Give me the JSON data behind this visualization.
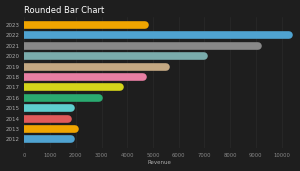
{
  "title": "Rounded Bar Chart",
  "xlabel": "Revenue",
  "bg_color": "#1e1e1e",
  "years": [
    "2012",
    "2013",
    "2014",
    "2015",
    "2016",
    "2017",
    "2018",
    "2019",
    "2020",
    "2021",
    "2022",
    "2023"
  ],
  "values": [
    1800,
    1950,
    1700,
    1800,
    2900,
    3700,
    4600,
    5500,
    7000,
    9100,
    10300,
    4700
  ],
  "colors": [
    "#4fa3d1",
    "#f0a500",
    "#e05a5a",
    "#5ecece",
    "#2aaa70",
    "#d4d41a",
    "#e87fa3",
    "#c4a882",
    "#7aacac",
    "#888888",
    "#4fa3d1",
    "#f0a500"
  ],
  "xlim": [
    0,
    10500
  ],
  "xticks": [
    0,
    1000,
    2000,
    3000,
    4000,
    5000,
    6000,
    7000,
    8000,
    9000,
    10000
  ],
  "tick_color": "#888888",
  "text_color": "#aaaaaa",
  "grid_color": "#2e2e2e",
  "title_color": "#ffffff",
  "title_fontsize": 6.0,
  "axis_fontsize": 4.0,
  "label_fontsize": 3.8,
  "lw": 5.5
}
